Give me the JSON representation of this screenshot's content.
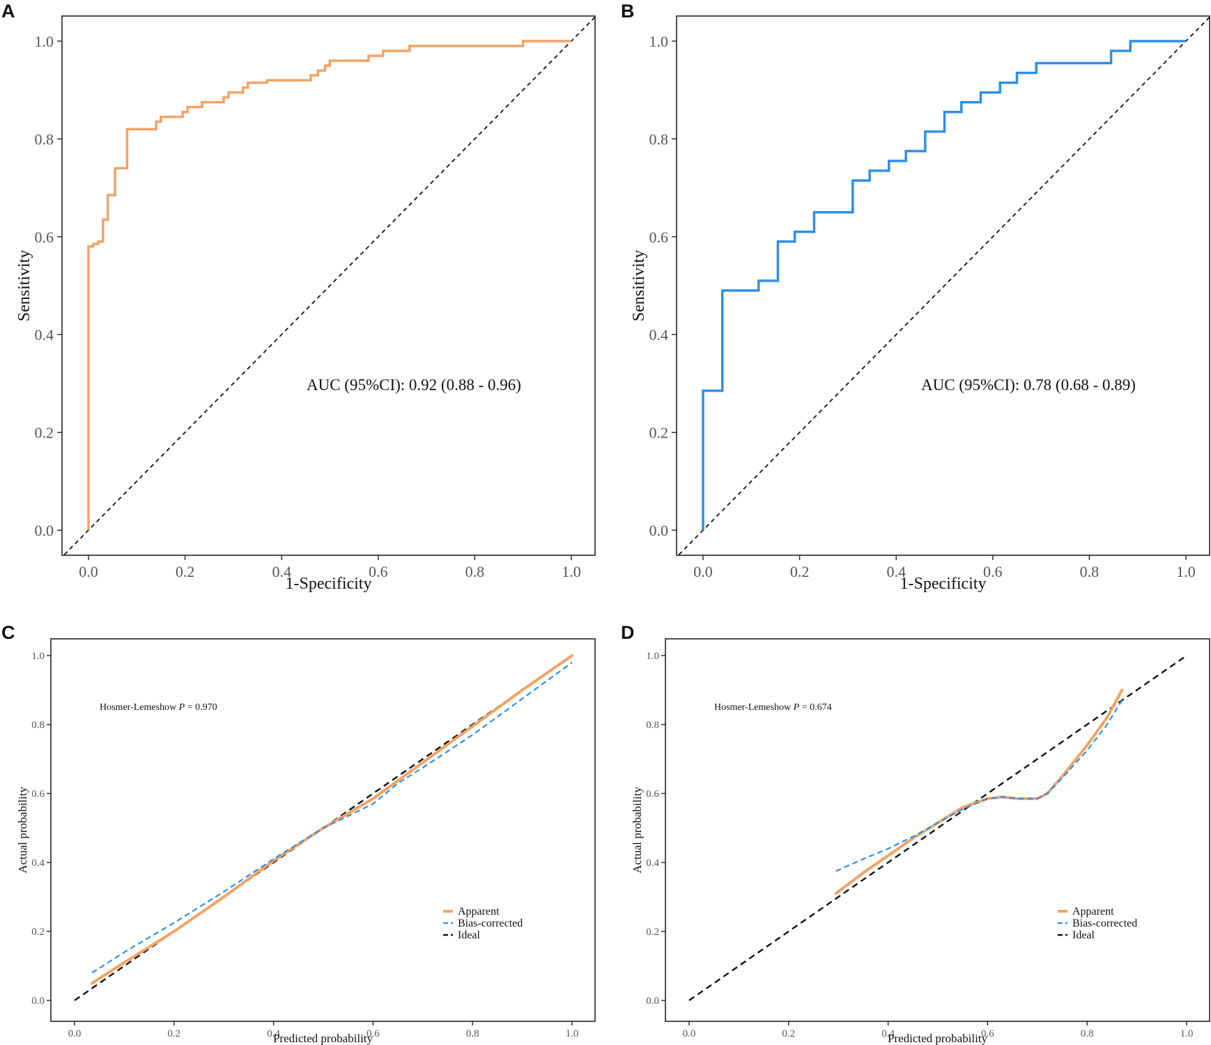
{
  "colors": {
    "orange": "#F2A366",
    "blue": "#2E8FE6",
    "ideal": "#111111",
    "frame": "#222222"
  },
  "chart_data": [
    {
      "panel": "A",
      "type": "line",
      "title": "",
      "xlabel": "1-Specificity",
      "ylabel": "Sensitivity",
      "xlim": [
        0,
        1
      ],
      "ylim": [
        0,
        1
      ],
      "xticks": [
        "0.0",
        "0.2",
        "0.4",
        "0.6",
        "0.8",
        "1.0"
      ],
      "yticks": [
        "0.0",
        "0.2",
        "0.4",
        "0.6",
        "0.8",
        "1.0"
      ],
      "annotation": "AUC (95%CI): 0.92 (0.88 - 0.96)",
      "grid": false,
      "series": [
        {
          "name": "ROC",
          "color": "#F2A366",
          "x": [
            0,
            0,
            0.01,
            0.01,
            0.02,
            0.02,
            0.03,
            0.03,
            0.04,
            0.04,
            0.055,
            0.055,
            0.08,
            0.08,
            0.14,
            0.14,
            0.15,
            0.15,
            0.195,
            0.195,
            0.205,
            0.205,
            0.235,
            0.235,
            0.28,
            0.28,
            0.29,
            0.29,
            0.32,
            0.32,
            0.33,
            0.33,
            0.37,
            0.37,
            0.46,
            0.46,
            0.475,
            0.475,
            0.49,
            0.49,
            0.5,
            0.5,
            0.58,
            0.58,
            0.61,
            0.61,
            0.665,
            0.665,
            0.9,
            0.9,
            1.0
          ],
          "y": [
            0,
            0.58,
            0.58,
            0.585,
            0.585,
            0.59,
            0.59,
            0.635,
            0.635,
            0.685,
            0.685,
            0.74,
            0.74,
            0.82,
            0.82,
            0.835,
            0.835,
            0.845,
            0.845,
            0.855,
            0.855,
            0.865,
            0.865,
            0.875,
            0.875,
            0.885,
            0.885,
            0.895,
            0.895,
            0.905,
            0.905,
            0.915,
            0.915,
            0.92,
            0.92,
            0.93,
            0.93,
            0.94,
            0.94,
            0.95,
            0.95,
            0.96,
            0.96,
            0.97,
            0.97,
            0.98,
            0.98,
            0.99,
            0.99,
            1.0,
            1.0
          ]
        },
        {
          "name": "Reference",
          "color": "#111111",
          "x": [
            -0.05,
            1.05
          ],
          "y": [
            -0.05,
            1.05
          ]
        }
      ]
    },
    {
      "panel": "B",
      "type": "line",
      "title": "",
      "xlabel": "1-Specificity",
      "ylabel": "Sensitivity",
      "xlim": [
        0,
        1
      ],
      "ylim": [
        0,
        1
      ],
      "xticks": [
        "0.0",
        "0.2",
        "0.4",
        "0.6",
        "0.8",
        "1.0"
      ],
      "yticks": [
        "0.0",
        "0.2",
        "0.4",
        "0.6",
        "0.8",
        "1.0"
      ],
      "annotation": "AUC (95%CI): 0.78 (0.68 - 0.89)",
      "grid": false,
      "series": [
        {
          "name": "ROC",
          "color": "#2E8FE6",
          "x": [
            0,
            0,
            0.04,
            0.04,
            0.115,
            0.115,
            0.155,
            0.155,
            0.19,
            0.19,
            0.23,
            0.23,
            0.31,
            0.31,
            0.345,
            0.345,
            0.385,
            0.385,
            0.42,
            0.42,
            0.46,
            0.46,
            0.5,
            0.5,
            0.535,
            0.535,
            0.575,
            0.575,
            0.615,
            0.615,
            0.65,
            0.65,
            0.69,
            0.69,
            0.845,
            0.845,
            0.885,
            0.885,
            1.0
          ],
          "y": [
            0,
            0.285,
            0.285,
            0.49,
            0.49,
            0.51,
            0.51,
            0.59,
            0.59,
            0.61,
            0.61,
            0.65,
            0.65,
            0.715,
            0.715,
            0.735,
            0.735,
            0.755,
            0.755,
            0.775,
            0.775,
            0.815,
            0.815,
            0.855,
            0.855,
            0.875,
            0.875,
            0.895,
            0.895,
            0.915,
            0.915,
            0.935,
            0.935,
            0.955,
            0.955,
            0.98,
            0.98,
            1.0,
            1.0
          ]
        },
        {
          "name": "Reference",
          "color": "#111111",
          "x": [
            -0.05,
            1.05
          ],
          "y": [
            -0.05,
            1.05
          ]
        }
      ]
    },
    {
      "panel": "C",
      "type": "line",
      "title": "",
      "xlabel": "Predicted probability",
      "ylabel": "Actual probability",
      "xlim": [
        0,
        1
      ],
      "ylim": [
        0,
        1
      ],
      "xticks": [
        "0.0",
        "0.2",
        "0.4",
        "0.6",
        "0.8",
        "1.0"
      ],
      "yticks": [
        "0.0",
        "0.2",
        "0.4",
        "0.6",
        "0.8",
        "1.0"
      ],
      "annotation": {
        "prefix": "Hosmer-Lemeshow",
        "p": "P",
        "eq": "=",
        "value": "0.970"
      },
      "legend": {
        "position": "bottom-right",
        "items": [
          "Apparent",
          "Bias-corrected",
          "Ideal"
        ]
      },
      "grid": false,
      "series": [
        {
          "name": "Apparent",
          "color": "#F2A366",
          "x": [
            0.035,
            0.1,
            0.2,
            0.3,
            0.4,
            0.5,
            0.6,
            0.7,
            0.8,
            0.9,
            1.0
          ],
          "y": [
            0.05,
            0.11,
            0.2,
            0.3,
            0.405,
            0.5,
            0.585,
            0.69,
            0.795,
            0.9,
            1.0
          ]
        },
        {
          "name": "Bias-corrected",
          "color": "#2E8FE6",
          "x": [
            0.035,
            0.1,
            0.2,
            0.3,
            0.4,
            0.5,
            0.6,
            0.65,
            0.7,
            0.8,
            0.9,
            1.0
          ],
          "y": [
            0.08,
            0.14,
            0.225,
            0.315,
            0.41,
            0.5,
            0.57,
            0.63,
            0.675,
            0.77,
            0.875,
            0.98
          ]
        },
        {
          "name": "Ideal",
          "color": "#111111",
          "x": [
            0.0,
            1.0
          ],
          "y": [
            0.0,
            1.0
          ]
        }
      ]
    },
    {
      "panel": "D",
      "type": "line",
      "title": "",
      "xlabel": "Predicted probability",
      "ylabel": "Actual probability",
      "xlim": [
        0,
        1
      ],
      "ylim": [
        0,
        1
      ],
      "xticks": [
        "0.0",
        "0.2",
        "0.4",
        "0.6",
        "0.8",
        "1.0"
      ],
      "yticks": [
        "0.0",
        "0.2",
        "0.4",
        "0.6",
        "0.8",
        "1.0"
      ],
      "annotation": {
        "prefix": "Hosmer-Lemeshow",
        "p": "P",
        "eq": "=",
        "value": "0.674"
      },
      "legend": {
        "position": "bottom-right",
        "items": [
          "Apparent",
          "Bias-corrected",
          "Ideal"
        ]
      },
      "grid": false,
      "series": [
        {
          "name": "Apparent",
          "color": "#F2A366",
          "x": [
            0.295,
            0.35,
            0.4,
            0.45,
            0.5,
            0.55,
            0.6,
            0.63,
            0.66,
            0.7,
            0.72,
            0.75,
            0.8,
            0.84,
            0.87
          ],
          "y": [
            0.31,
            0.37,
            0.42,
            0.47,
            0.515,
            0.56,
            0.585,
            0.59,
            0.585,
            0.585,
            0.6,
            0.65,
            0.74,
            0.82,
            0.9
          ]
        },
        {
          "name": "Bias-corrected",
          "color": "#2E8FE6",
          "x": [
            0.295,
            0.35,
            0.4,
            0.45,
            0.5,
            0.55,
            0.6,
            0.63,
            0.66,
            0.7,
            0.72,
            0.75,
            0.8,
            0.84,
            0.87
          ],
          "y": [
            0.375,
            0.41,
            0.44,
            0.475,
            0.515,
            0.555,
            0.585,
            0.59,
            0.585,
            0.585,
            0.6,
            0.645,
            0.725,
            0.8,
            0.87
          ]
        },
        {
          "name": "Ideal",
          "color": "#111111",
          "x": [
            0.0,
            1.0
          ],
          "y": [
            0.0,
            1.0
          ]
        }
      ]
    }
  ]
}
